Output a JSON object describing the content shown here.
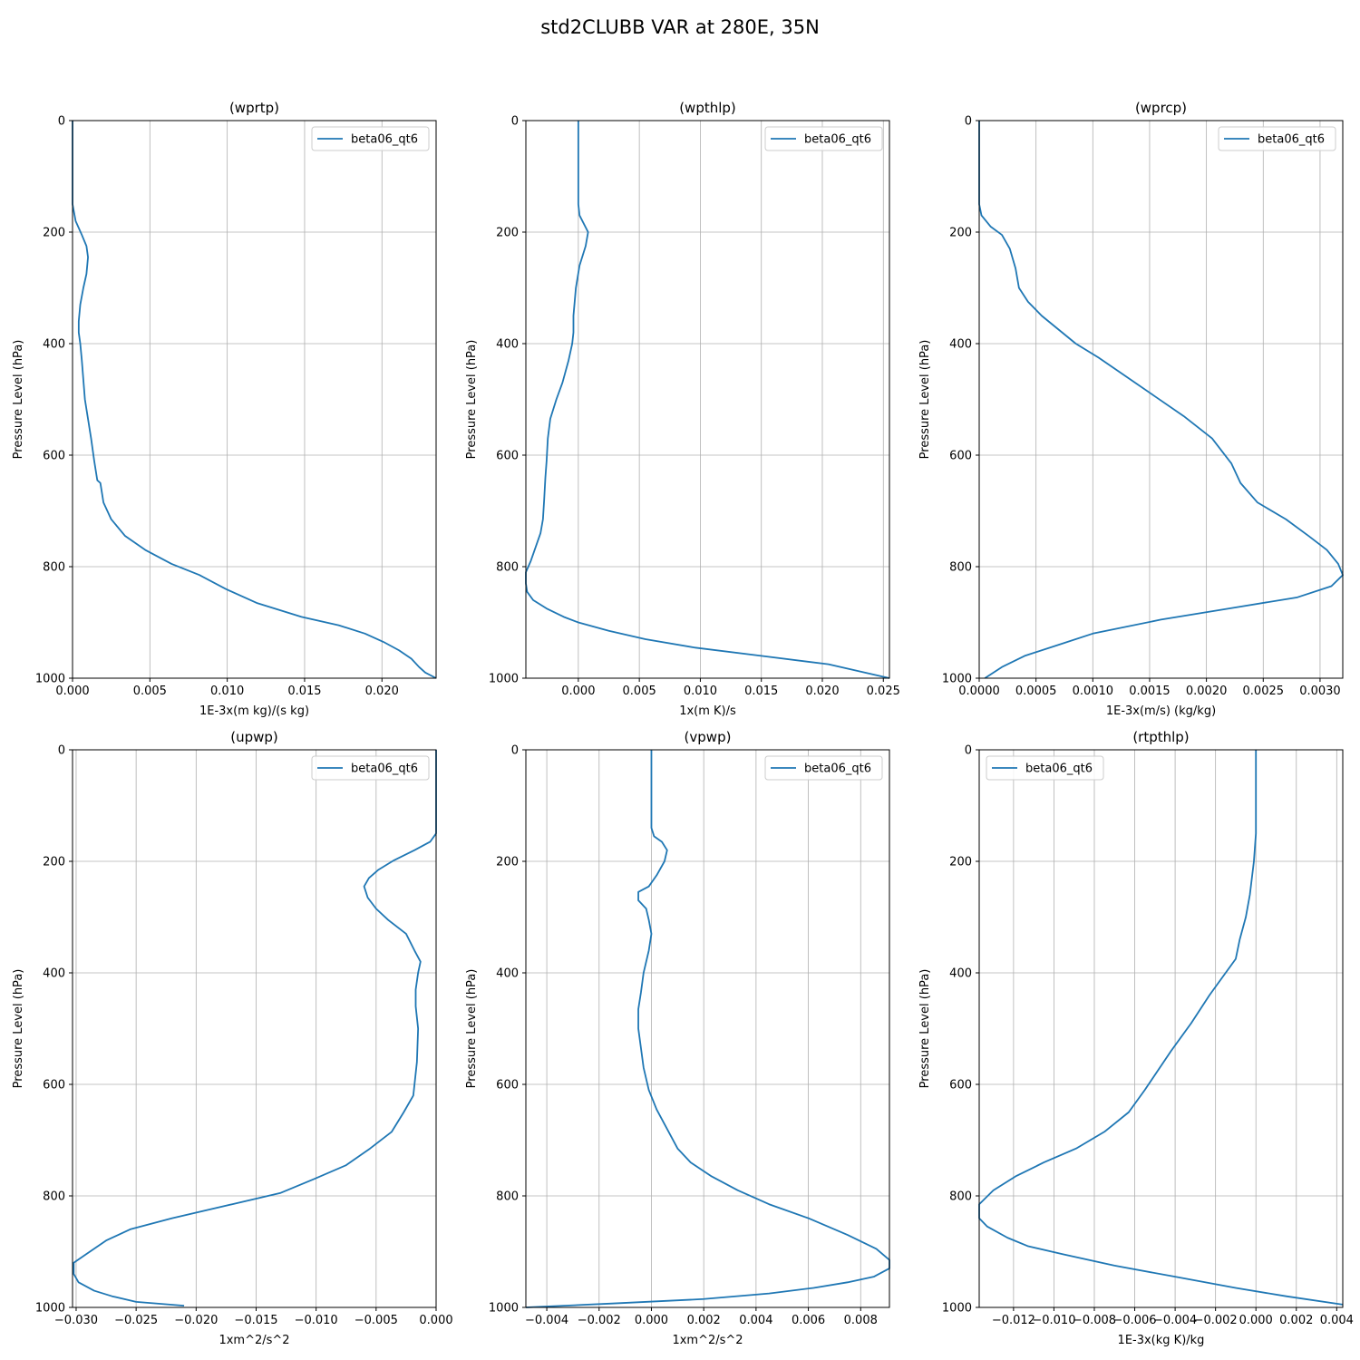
{
  "figure": {
    "title": "std2CLUBB VAR at 280E, 35N"
  },
  "chart_data": [
    {
      "type": "line",
      "title": "(wprtp)",
      "xlabel": "1E-3x(m kg)/(s kg)",
      "ylabel": "Pressure Level (hPa)",
      "xlim": [
        0.0,
        0.0235
      ],
      "ylim": [
        1000,
        0
      ],
      "xticks": [
        0.0,
        0.005,
        0.01,
        0.015,
        0.02
      ],
      "xtick_labels": [
        "0.000",
        "0.005",
        "0.010",
        "0.015",
        "0.020"
      ],
      "yticks": [
        0,
        200,
        400,
        600,
        800,
        1000
      ],
      "ytick_labels": [
        "0",
        "200",
        "400",
        "600",
        "800",
        "1000"
      ],
      "grid": true,
      "legend": "upper right",
      "series": [
        {
          "name": "beta06_qt6",
          "color": "#1f77b4",
          "x": [
            0.0,
            0.0,
            0.0002,
            0.0006,
            0.0009,
            0.001,
            0.0009,
            0.0007,
            0.0005,
            0.0004,
            0.0004,
            0.0005,
            0.0006,
            0.0007,
            0.0008,
            0.001,
            0.0012,
            0.0014,
            0.0016,
            0.0018,
            0.002,
            0.0025,
            0.0034,
            0.0047,
            0.0064,
            0.0082,
            0.0099,
            0.0119,
            0.0148,
            0.0172,
            0.0189,
            0.0201,
            0.0211,
            0.0219,
            0.0224,
            0.0228,
            0.0235
          ],
          "y": [
            0,
            150,
            180,
            205,
            225,
            245,
            275,
            300,
            330,
            360,
            380,
            400,
            430,
            465,
            500,
            535,
            570,
            610,
            645,
            650,
            685,
            715,
            745,
            770,
            795,
            815,
            840,
            865,
            890,
            905,
            920,
            935,
            950,
            965,
            980,
            990,
            1000
          ]
        }
      ]
    },
    {
      "type": "line",
      "title": "(wpthlp)",
      "xlabel": "1x(m K)/s",
      "ylabel": "Pressure Level (hPa)",
      "xlim": [
        -0.0043,
        0.0255
      ],
      "ylim": [
        1000,
        0
      ],
      "xticks": [
        0.0,
        0.005,
        0.01,
        0.015,
        0.02,
        0.025
      ],
      "xtick_labels": [
        "0.000",
        "0.005",
        "0.010",
        "0.015",
        "0.020",
        "0.025"
      ],
      "yticks": [
        0,
        200,
        400,
        600,
        800,
        1000
      ],
      "ytick_labels": [
        "0",
        "200",
        "400",
        "600",
        "800",
        "1000"
      ],
      "grid": true,
      "legend": "upper right",
      "series": [
        {
          "name": "beta06_qt6",
          "color": "#1f77b4",
          "x": [
            0.0,
            0.0,
            0.0001,
            0.0008,
            0.0006,
            0.0001,
            -0.0002,
            -0.0004,
            -0.0004,
            -0.0005,
            -0.0008,
            -0.0013,
            -0.0018,
            -0.0023,
            -0.0025,
            -0.0026,
            -0.0027,
            -0.0028,
            -0.0029,
            -0.0031,
            -0.0035,
            -0.0039,
            -0.0043,
            -0.0043,
            -0.0042,
            -0.0037,
            -0.0026,
            -0.0012,
            0.0,
            0.0025,
            0.0055,
            0.0095,
            0.015,
            0.0205,
            0.0255
          ],
          "y": [
            0,
            150,
            170,
            200,
            225,
            260,
            300,
            350,
            380,
            400,
            430,
            470,
            500,
            535,
            570,
            610,
            640,
            680,
            715,
            740,
            765,
            790,
            810,
            830,
            845,
            860,
            875,
            890,
            900,
            915,
            930,
            945,
            960,
            975,
            1000
          ]
        }
      ]
    },
    {
      "type": "line",
      "title": "(wprcp)",
      "xlabel": "1E-3x(m/s) (kg/kg)",
      "ylabel": "Pressure Level (hPa)",
      "xlim": [
        0.0,
        0.0032
      ],
      "ylim": [
        1000,
        0
      ],
      "xticks": [
        0.0,
        0.0005,
        0.001,
        0.0015,
        0.002,
        0.0025,
        0.003
      ],
      "xtick_labels": [
        "0.0000",
        "0.0005",
        "0.0010",
        "0.0015",
        "0.0020",
        "0.0025",
        "0.0030"
      ],
      "yticks": [
        0,
        200,
        400,
        600,
        800,
        1000
      ],
      "ytick_labels": [
        "0",
        "200",
        "400",
        "600",
        "800",
        "1000"
      ],
      "grid": true,
      "legend": "upper right",
      "series": [
        {
          "name": "beta06_qt6",
          "color": "#1f77b4",
          "x": [
            0.0,
            0.0,
            2e-05,
            0.0001,
            0.0002,
            0.00027,
            0.00032,
            0.00035,
            0.00043,
            0.00055,
            0.0007,
            0.00085,
            0.00105,
            0.0013,
            0.00155,
            0.0018,
            0.00205,
            0.00222,
            0.0023,
            0.00245,
            0.0027,
            0.0029,
            0.00306,
            0.00316,
            0.0032,
            0.0031,
            0.0028,
            0.0022,
            0.0016,
            0.001,
            0.0007,
            0.0004,
            0.0002,
            5e-05
          ],
          "y": [
            0,
            150,
            170,
            190,
            205,
            230,
            265,
            300,
            325,
            350,
            375,
            400,
            425,
            460,
            495,
            530,
            570,
            615,
            650,
            685,
            715,
            745,
            770,
            795,
            815,
            835,
            855,
            875,
            895,
            920,
            940,
            960,
            980,
            1000
          ]
        }
      ]
    },
    {
      "type": "line",
      "title": "(upwp)",
      "xlabel": "1xm^2/s^2",
      "ylabel": "Pressure Level (hPa)",
      "xlim": [
        -0.0303,
        0.0
      ],
      "ylim": [
        1000,
        0
      ],
      "xticks": [
        -0.03,
        -0.025,
        -0.02,
        -0.015,
        -0.01,
        -0.005,
        0.0
      ],
      "xtick_labels": [
        "−0.030",
        "−0.025",
        "−0.020",
        "−0.015",
        "−0.010",
        "−0.005",
        "0.000"
      ],
      "yticks": [
        0,
        200,
        400,
        600,
        800,
        1000
      ],
      "ytick_labels": [
        "0",
        "200",
        "400",
        "600",
        "800",
        "1000"
      ],
      "grid": true,
      "legend": "upper right",
      "series": [
        {
          "name": "beta06_qt6",
          "color": "#1f77b4",
          "x": [
            0.0,
            0.0,
            -0.0005,
            -0.0018,
            -0.0035,
            -0.0048,
            -0.0056,
            -0.006,
            -0.0057,
            -0.005,
            -0.004,
            -0.0025,
            -0.0018,
            -0.0013,
            -0.0015,
            -0.0017,
            -0.0017,
            -0.0015,
            -0.0016,
            -0.0019,
            -0.0027,
            -0.0037,
            -0.0055,
            -0.0075,
            -0.0102,
            -0.013,
            -0.017,
            -0.022,
            -0.0255,
            -0.0275,
            -0.0292,
            -0.0302,
            -0.0302,
            -0.0298,
            -0.0285,
            -0.027,
            -0.025,
            -0.021
          ],
          "y": [
            0,
            150,
            165,
            180,
            198,
            215,
            230,
            245,
            265,
            285,
            305,
            330,
            360,
            380,
            400,
            430,
            460,
            500,
            560,
            620,
            650,
            685,
            715,
            745,
            770,
            795,
            815,
            840,
            860,
            880,
            905,
            920,
            940,
            955,
            970,
            980,
            990,
            997
          ]
        }
      ]
    },
    {
      "type": "line",
      "title": "(vpwp)",
      "xlabel": "1xm^2/s^2",
      "ylabel": "Pressure Level (hPa)",
      "xlim": [
        -0.0048,
        0.0091
      ],
      "ylim": [
        1000,
        0
      ],
      "xticks": [
        -0.004,
        -0.002,
        0.0,
        0.002,
        0.004,
        0.006,
        0.008
      ],
      "xtick_labels": [
        "−0.004",
        "−0.002",
        "0.000",
        "0.002",
        "0.004",
        "0.006",
        "0.008"
      ],
      "yticks": [
        0,
        200,
        400,
        600,
        800,
        1000
      ],
      "ytick_labels": [
        "0",
        "200",
        "400",
        "600",
        "800",
        "1000"
      ],
      "grid": true,
      "legend": "upper right",
      "series": [
        {
          "name": "beta06_qt6",
          "color": "#1f77b4",
          "x": [
            0.0,
            0.0,
            0.0001,
            0.0004,
            0.0006,
            0.0005,
            0.0002,
            -0.0001,
            -0.0005,
            -0.0005,
            -0.0002,
            -0.0001,
            0.0,
            -0.0001,
            -0.0003,
            -0.0004,
            -0.0005,
            -0.0005,
            -0.0004,
            -0.0003,
            -0.0001,
            0.0002,
            0.0006,
            0.001,
            0.0015,
            0.0023,
            0.0033,
            0.0045,
            0.006,
            0.0075,
            0.0086,
            0.0091,
            0.0091,
            0.0085,
            0.0075,
            0.0062,
            0.0045,
            0.002,
            -0.0015,
            -0.0048
          ],
          "y": [
            0,
            140,
            155,
            165,
            180,
            200,
            225,
            245,
            255,
            270,
            285,
            305,
            330,
            360,
            400,
            435,
            465,
            500,
            535,
            570,
            610,
            645,
            680,
            715,
            740,
            765,
            790,
            815,
            840,
            870,
            895,
            915,
            930,
            945,
            955,
            965,
            975,
            985,
            993,
            1000
          ]
        }
      ]
    },
    {
      "type": "line",
      "title": "(rtpthlp)",
      "xlabel": "1E-3x(kg K)/kg",
      "ylabel": "Pressure Level (hPa)",
      "xlim": [
        -0.0137,
        0.0043
      ],
      "ylim": [
        1000,
        0
      ],
      "xticks": [
        -0.012,
        -0.01,
        -0.008,
        -0.006,
        -0.004,
        -0.002,
        0.0,
        0.002,
        0.004
      ],
      "xtick_labels": [
        "−0.012",
        "−0.010",
        "−0.008",
        "−0.006",
        "−0.004",
        "−0.002",
        "0.000",
        "0.002",
        "0.004"
      ],
      "yticks": [
        0,
        200,
        400,
        600,
        800,
        1000
      ],
      "ytick_labels": [
        "0",
        "200",
        "400",
        "600",
        "800",
        "1000"
      ],
      "grid": true,
      "legend": "upper left",
      "series": [
        {
          "name": "beta06_qt6",
          "color": "#1f77b4",
          "x": [
            0.0,
            0.0,
            -0.0001,
            -0.0003,
            -0.0005,
            -0.0008,
            -0.001,
            -0.0015,
            -0.0023,
            -0.0032,
            -0.0042,
            -0.0055,
            -0.0063,
            -0.0075,
            -0.0089,
            -0.0105,
            -0.0119,
            -0.013,
            -0.0137,
            -0.0137,
            -0.0133,
            -0.0123,
            -0.0113,
            -0.0095,
            -0.007,
            -0.004,
            -0.001,
            0.0015,
            0.0043
          ],
          "y": [
            0,
            150,
            200,
            260,
            300,
            340,
            375,
            400,
            440,
            490,
            540,
            610,
            650,
            685,
            715,
            740,
            765,
            790,
            815,
            840,
            855,
            875,
            890,
            905,
            925,
            945,
            965,
            980,
            995
          ]
        }
      ]
    }
  ]
}
